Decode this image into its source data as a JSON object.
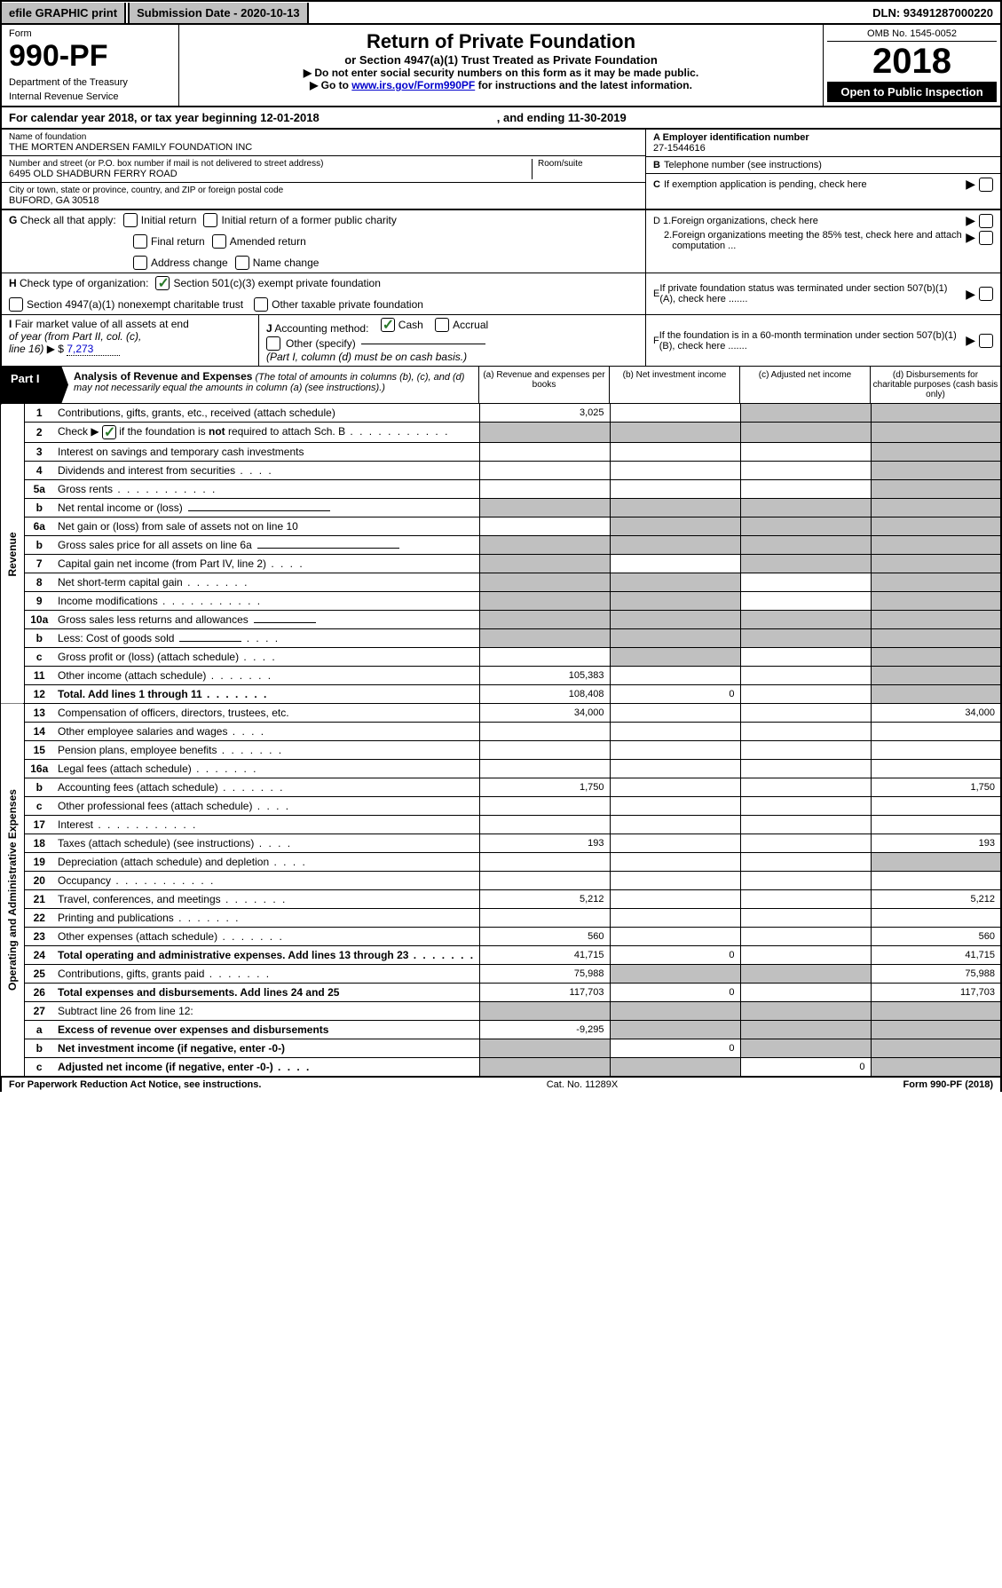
{
  "topbar": {
    "efile": "efile GRAPHIC print",
    "submission_label": "Submission Date - 2020-10-13",
    "dln": "DLN: 93491287000220"
  },
  "header": {
    "form_label": "Form",
    "form_number": "990-PF",
    "dept1": "Department of the Treasury",
    "dept2": "Internal Revenue Service",
    "title": "Return of Private Foundation",
    "subtitle": "or Section 4947(a)(1) Trust Treated as Private Foundation",
    "instr1": "▶ Do not enter social security numbers on this form as it may be made public.",
    "instr2_pre": "▶ Go to ",
    "instr2_link": "www.irs.gov/Form990PF",
    "instr2_post": " for instructions and the latest information.",
    "omb": "OMB No. 1545-0052",
    "year": "2018",
    "open_public": "Open to Public Inspection"
  },
  "cal_year": {
    "left": "For calendar year 2018, or tax year beginning 12-01-2018",
    "right": ", and ending 11-30-2019"
  },
  "name_block": {
    "name_label": "Name of foundation",
    "name_val": "THE MORTEN ANDERSEN FAMILY FOUNDATION INC",
    "addr_label": "Number and street (or P.O. box number if mail is not delivered to street address)",
    "addr_val": "6495 OLD SHADBURN FERRY ROAD",
    "room_label": "Room/suite",
    "city_label": "City or town, state or province, country, and ZIP or foreign postal code",
    "city_val": "BUFORD, GA  30518"
  },
  "right_block": {
    "a_label": "A Employer identification number",
    "a_val": "27-1544616",
    "b_label": "B",
    "b_text": "Telephone number (see instructions)",
    "c_label": "C",
    "c_text": "If exemption application is pending, check here",
    "d1_label": "D 1.",
    "d1_text": "Foreign organizations, check here",
    "d2_label": "2.",
    "d2_text": "Foreign organizations meeting the 85% test, check here and attach computation ...",
    "e_label": "E",
    "e_text": "If private foundation status was terminated under section 507(b)(1)(A), check here .......",
    "f_label": "F",
    "f_text": "If the foundation is in a 60-month termination under section 507(b)(1)(B), check here ......."
  },
  "g_block": {
    "g_label": "G",
    "g_text": "Check all that apply:",
    "opt1": "Initial return",
    "opt2": "Final return",
    "opt3": "Address change",
    "opt4": "Initial return of a former public charity",
    "opt5": "Amended return",
    "opt6": "Name change"
  },
  "h_block": {
    "h_label": "H",
    "h_text": "Check type of organization:",
    "opt1": "Section 501(c)(3) exempt private foundation",
    "opt2": "Section 4947(a)(1) nonexempt charitable trust",
    "opt3": "Other taxable private foundation"
  },
  "i_block": {
    "i_label": "I",
    "i_text1": "Fair market value of all assets at end",
    "i_text2": "of year (from Part II, col. (c),",
    "i_text3": "line 16)",
    "i_arrow": "▶",
    "i_dollar": "$",
    "i_val": "7,273"
  },
  "j_block": {
    "j_label": "J",
    "j_text": "Accounting method:",
    "opt1": "Cash",
    "opt2": "Accrual",
    "opt3_pre": "Other (specify)",
    "note": "(Part I, column (d) must be on cash basis.)"
  },
  "part1": {
    "label": "Part I",
    "title": "Analysis of Revenue and Expenses",
    "note": "(The total of amounts in columns (b), (c), and (d) may not necessarily equal the amounts in column (a) (see instructions).)",
    "col_a": "(a)   Revenue and expenses per books",
    "col_b": "(b)   Net investment income",
    "col_c": "(c)   Adjusted net income",
    "col_d": "(d)   Disbursements for charitable purposes (cash basis only)"
  },
  "side_labels": {
    "revenue": "Revenue",
    "expenses": "Operating and Administrative Expenses"
  },
  "rows": [
    {
      "n": "1",
      "desc": "Contributions, gifts, grants, etc., received (attach schedule)",
      "a": "3,025",
      "b": "",
      "c": "shaded",
      "d": "shaded"
    },
    {
      "n": "2",
      "desc": "Check ▶ ☑ if the foundation is not required to attach Sch. B",
      "dots": "long",
      "a": "shaded",
      "b": "shaded",
      "c": "shaded",
      "d": "shaded"
    },
    {
      "n": "3",
      "desc": "Interest on savings and temporary cash investments",
      "a": "",
      "b": "",
      "c": "",
      "d": "shaded"
    },
    {
      "n": "4",
      "desc": "Dividends and interest from securities",
      "dots": "short",
      "a": "",
      "b": "",
      "c": "",
      "d": "shaded"
    },
    {
      "n": "5a",
      "desc": "Gross rents",
      "dots": "long",
      "a": "",
      "b": "",
      "c": "",
      "d": "shaded"
    },
    {
      "n": "b",
      "desc": "Net rental income or (loss)",
      "underline": true,
      "a": "shaded",
      "b": "shaded",
      "c": "shaded",
      "d": "shaded"
    },
    {
      "n": "6a",
      "desc": "Net gain or (loss) from sale of assets not on line 10",
      "a": "",
      "b": "shaded",
      "c": "shaded",
      "d": "shaded"
    },
    {
      "n": "b",
      "desc": "Gross sales price for all assets on line 6a",
      "underline": true,
      "a": "shaded",
      "b": "shaded",
      "c": "shaded",
      "d": "shaded"
    },
    {
      "n": "7",
      "desc": "Capital gain net income (from Part IV, line 2)",
      "dots": "short",
      "a": "shaded",
      "b": "",
      "c": "shaded",
      "d": "shaded"
    },
    {
      "n": "8",
      "desc": "Net short-term capital gain",
      "dots": "med",
      "a": "shaded",
      "b": "shaded",
      "c": "",
      "d": "shaded"
    },
    {
      "n": "9",
      "desc": "Income modifications",
      "dots": "long",
      "a": "shaded",
      "b": "shaded",
      "c": "",
      "d": "shaded"
    },
    {
      "n": "10a",
      "desc": "Gross sales less returns and allowances",
      "underline_short": true,
      "a": "shaded",
      "b": "shaded",
      "c": "shaded",
      "d": "shaded"
    },
    {
      "n": "b",
      "desc": "Less: Cost of goods sold",
      "dots": "short",
      "underline_short": true,
      "a": "shaded",
      "b": "shaded",
      "c": "shaded",
      "d": "shaded"
    },
    {
      "n": "c",
      "desc": "Gross profit or (loss) (attach schedule)",
      "dots": "short",
      "a": "",
      "b": "shaded",
      "c": "",
      "d": "shaded"
    },
    {
      "n": "11",
      "desc": "Other income (attach schedule)",
      "dots": "med",
      "a": "105,383",
      "b": "",
      "c": "",
      "d": "shaded"
    },
    {
      "n": "12",
      "desc": "Total. Add lines 1 through 11",
      "dots": "med",
      "bold": true,
      "a": "108,408",
      "b": "0",
      "c": "",
      "d": "shaded"
    },
    {
      "n": "13",
      "desc": "Compensation of officers, directors, trustees, etc.",
      "a": "34,000",
      "b": "",
      "c": "",
      "d": "34,000"
    },
    {
      "n": "14",
      "desc": "Other employee salaries and wages",
      "dots": "short",
      "a": "",
      "b": "",
      "c": "",
      "d": ""
    },
    {
      "n": "15",
      "desc": "Pension plans, employee benefits",
      "dots": "med",
      "a": "",
      "b": "",
      "c": "",
      "d": ""
    },
    {
      "n": "16a",
      "desc": "Legal fees (attach schedule)",
      "dots": "med",
      "a": "",
      "b": "",
      "c": "",
      "d": ""
    },
    {
      "n": "b",
      "desc": "Accounting fees (attach schedule)",
      "dots": "med",
      "a": "1,750",
      "b": "",
      "c": "",
      "d": "1,750"
    },
    {
      "n": "c",
      "desc": "Other professional fees (attach schedule)",
      "dots": "short",
      "a": "",
      "b": "",
      "c": "",
      "d": ""
    },
    {
      "n": "17",
      "desc": "Interest",
      "dots": "long",
      "a": "",
      "b": "",
      "c": "",
      "d": ""
    },
    {
      "n": "18",
      "desc": "Taxes (attach schedule) (see instructions)",
      "dots": "short",
      "a": "193",
      "b": "",
      "c": "",
      "d": "193"
    },
    {
      "n": "19",
      "desc": "Depreciation (attach schedule) and depletion",
      "dots": "short",
      "a": "",
      "b": "",
      "c": "",
      "d": "shaded"
    },
    {
      "n": "20",
      "desc": "Occupancy",
      "dots": "long",
      "a": "",
      "b": "",
      "c": "",
      "d": ""
    },
    {
      "n": "21",
      "desc": "Travel, conferences, and meetings",
      "dots": "med",
      "a": "5,212",
      "b": "",
      "c": "",
      "d": "5,212"
    },
    {
      "n": "22",
      "desc": "Printing and publications",
      "dots": "med",
      "a": "",
      "b": "",
      "c": "",
      "d": ""
    },
    {
      "n": "23",
      "desc": "Other expenses (attach schedule)",
      "dots": "med",
      "a": "560",
      "b": "",
      "c": "",
      "d": "560"
    },
    {
      "n": "24",
      "desc": "Total operating and administrative expenses. Add lines 13 through 23",
      "dots": "med",
      "bold": true,
      "a": "41,715",
      "b": "0",
      "c": "",
      "d": "41,715"
    },
    {
      "n": "25",
      "desc": "Contributions, gifts, grants paid",
      "dots": "med",
      "a": "75,988",
      "b": "shaded",
      "c": "shaded",
      "d": "75,988"
    },
    {
      "n": "26",
      "desc": "Total expenses and disbursements. Add lines 24 and 25",
      "bold": true,
      "a": "117,703",
      "b": "0",
      "c": "",
      "d": "117,703"
    },
    {
      "n": "27",
      "desc": "Subtract line 26 from line 12:",
      "a": "shaded",
      "b": "shaded",
      "c": "shaded",
      "d": "shaded"
    },
    {
      "n": "a",
      "desc": "Excess of revenue over expenses and disbursements",
      "bold": true,
      "a": "-9,295",
      "b": "shaded",
      "c": "shaded",
      "d": "shaded"
    },
    {
      "n": "b",
      "desc": "Net investment income (if negative, enter -0-)",
      "bold": true,
      "a": "shaded",
      "b": "0",
      "c": "shaded",
      "d": "shaded"
    },
    {
      "n": "c",
      "desc": "Adjusted net income (if negative, enter -0-)",
      "dots": "short",
      "bold": true,
      "a": "shaded",
      "b": "shaded",
      "c": "0",
      "d": "shaded"
    }
  ],
  "footer": {
    "left": "For Paperwork Reduction Act Notice, see instructions.",
    "mid": "Cat. No. 11289X",
    "right": "Form 990-PF (2018)"
  },
  "colors": {
    "bg": "#ffffff",
    "shaded": "#c0c0c0",
    "black": "#000000",
    "link": "#0000cc",
    "check_green": "#2a7a2a"
  }
}
